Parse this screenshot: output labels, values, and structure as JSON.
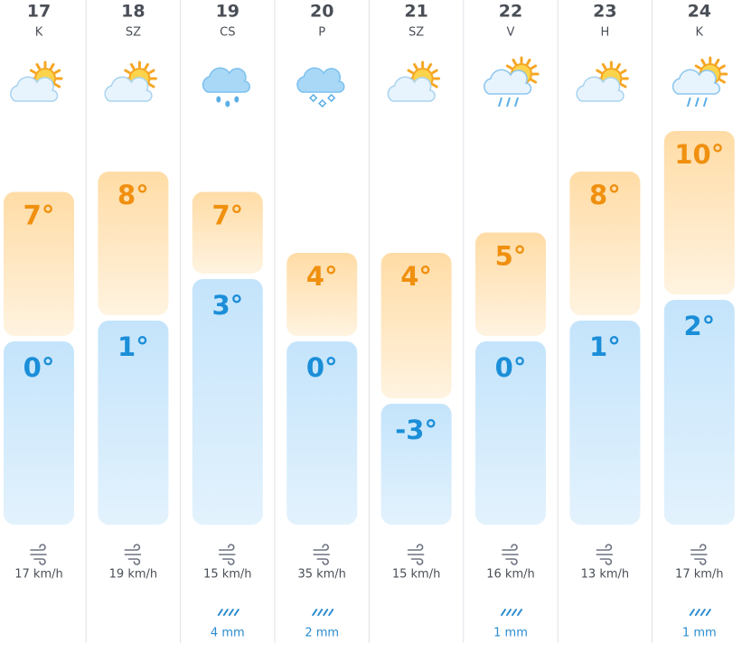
{
  "days": [
    {
      "date": "17",
      "weekday": "K",
      "high": {
        "value": 7,
        "label": "7°"
      },
      "low": {
        "value": 0,
        "label": "0°"
      },
      "wind": "17 km/h"
    },
    {
      "date": "18",
      "weekday": "SZ",
      "high": {
        "value": 8,
        "label": "8°"
      },
      "low": {
        "value": 1,
        "label": "1°"
      },
      "wind": "19 km/h"
    },
    {
      "date": "19",
      "weekday": "CS",
      "high": {
        "value": 7,
        "label": "7°"
      },
      "low": {
        "value": 3,
        "label": "3°"
      },
      "wind": "15 km/h",
      "rain": "4 mm"
    },
    {
      "date": "20",
      "weekday": "P",
      "high": {
        "value": 4,
        "label": "4°"
      },
      "low": {
        "value": 0,
        "label": "0°"
      },
      "wind": "35 km/h",
      "rain": "2 mm"
    },
    {
      "date": "21",
      "weekday": "SZ",
      "high": {
        "value": 4,
        "label": "4°"
      },
      "low": {
        "value": -3,
        "label": "-3°"
      },
      "wind": "15 km/h"
    },
    {
      "date": "22",
      "weekday": "V",
      "high": {
        "value": 5,
        "label": "5°"
      },
      "low": {
        "value": 0,
        "label": "0°"
      },
      "wind": "16 km/h",
      "rain": "1 mm"
    },
    {
      "date": "23",
      "weekday": "H",
      "high": {
        "value": 8,
        "label": "8°"
      },
      "low": {
        "value": 1,
        "label": "1°"
      },
      "wind": "13 km/h"
    },
    {
      "date": "24",
      "weekday": "K",
      "high": {
        "value": 10,
        "label": "10°"
      },
      "low": {
        "value": 2,
        "label": "2°"
      },
      "wind": "17 km/h",
      "rain": "1 mm"
    }
  ]
}
